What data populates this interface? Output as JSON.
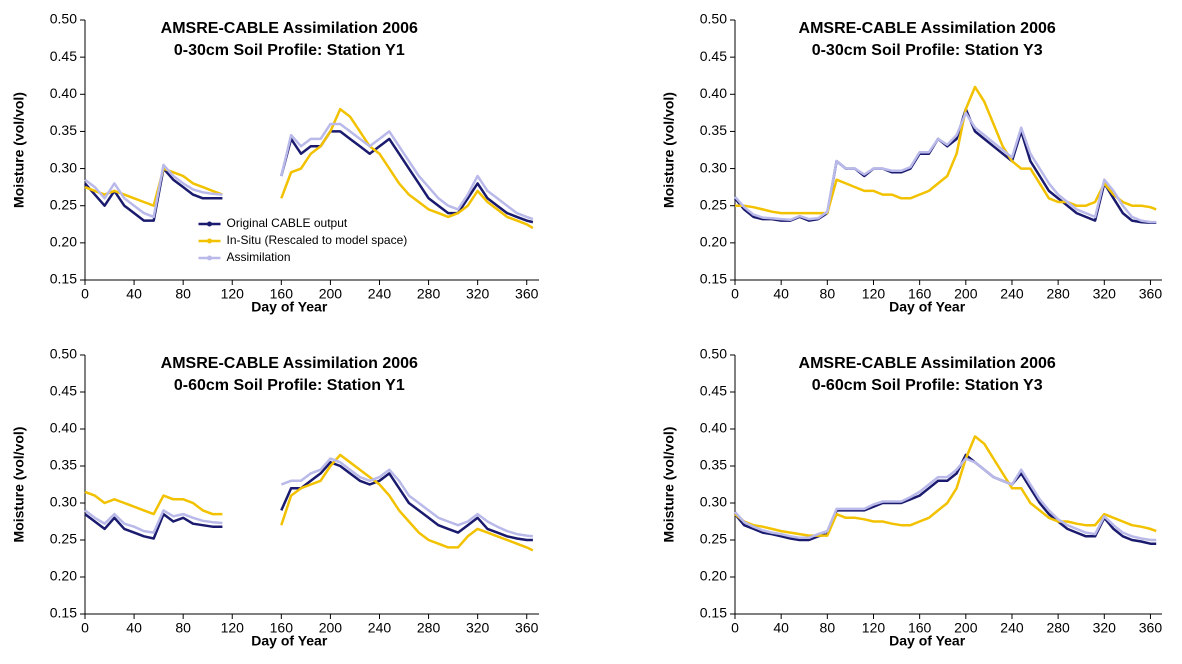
{
  "chart_data": [
    {
      "type": "line",
      "title": "AMSRE-CABLE Assimilation 2006",
      "subtitle": "0-30cm Soil Profile: Station Y1",
      "xlabel": "Day of Year",
      "ylabel": "Moisture (vol/vol)",
      "xlim": [
        0,
        370
      ],
      "ylim": [
        0.15,
        0.5
      ],
      "xticks": [
        0,
        40,
        80,
        120,
        160,
        200,
        240,
        280,
        320,
        360
      ],
      "yticks": [
        0.15,
        {
          "value": 0.2,
          "label": "0.20"
        },
        0.25,
        {
          "value": 0.3,
          "label": "0.30"
        },
        0.35,
        {
          "value": 0.4,
          "label": "0.40"
        },
        0.45,
        {
          "value": 0.5,
          "label": "0.50"
        }
      ],
      "legend": "lower center",
      "x": [
        0,
        8,
        16,
        24,
        32,
        40,
        48,
        56,
        64,
        72,
        80,
        88,
        96,
        104,
        112,
        120,
        128,
        136,
        144,
        152,
        160,
        168,
        176,
        184,
        192,
        200,
        208,
        216,
        224,
        232,
        240,
        248,
        256,
        264,
        272,
        280,
        288,
        296,
        304,
        312,
        320,
        328,
        336,
        344,
        352,
        360,
        365
      ],
      "series": [
        {
          "name": "Original CABLE output",
          "color": "#1a1a6e",
          "values": [
            0.28,
            0.265,
            0.25,
            0.27,
            0.25,
            0.24,
            0.23,
            0.23,
            0.3,
            0.285,
            0.275,
            0.265,
            0.26,
            0.26,
            0.26,
            null,
            null,
            null,
            null,
            null,
            0.29,
            0.34,
            0.32,
            0.33,
            0.33,
            0.35,
            0.35,
            0.34,
            0.33,
            0.32,
            0.33,
            0.34,
            0.32,
            0.3,
            0.28,
            0.26,
            0.25,
            0.24,
            0.24,
            0.26,
            0.28,
            0.26,
            0.25,
            0.24,
            0.235,
            0.23,
            0.228
          ]
        },
        {
          "name": "In-Situ (Rescaled to model space)",
          "color": "#f2c200",
          "values": [
            0.275,
            0.27,
            0.265,
            0.27,
            0.265,
            0.26,
            0.255,
            0.25,
            0.3,
            0.295,
            0.29,
            0.28,
            0.275,
            0.27,
            0.265,
            null,
            null,
            null,
            null,
            null,
            0.26,
            0.295,
            0.3,
            0.32,
            0.33,
            0.35,
            0.38,
            0.37,
            0.35,
            0.33,
            0.32,
            0.3,
            0.28,
            0.265,
            0.255,
            0.245,
            0.24,
            0.235,
            0.24,
            0.25,
            0.27,
            0.255,
            0.245,
            0.235,
            0.23,
            0.225,
            0.22
          ]
        },
        {
          "name": "Assimilation",
          "color": "#b9b9ea",
          "values": [
            0.285,
            0.275,
            0.26,
            0.28,
            0.26,
            0.25,
            0.24,
            0.235,
            0.305,
            0.29,
            0.28,
            0.272,
            0.268,
            0.266,
            0.265,
            null,
            null,
            null,
            null,
            null,
            0.29,
            0.345,
            0.33,
            0.34,
            0.34,
            0.36,
            0.36,
            0.35,
            0.34,
            0.33,
            0.34,
            0.35,
            0.33,
            0.31,
            0.29,
            0.275,
            0.26,
            0.25,
            0.245,
            0.265,
            0.29,
            0.27,
            0.26,
            0.25,
            0.24,
            0.235,
            0.232
          ]
        }
      ]
    },
    {
      "type": "line",
      "title": "AMSRE-CABLE Assimilation 2006",
      "subtitle": "0-30cm Soil Profile: Station Y3",
      "xlabel": "Day of Year",
      "ylabel": "Moisture (vol/vol)",
      "xlim": [
        0,
        370
      ],
      "ylim": [
        0.15,
        0.5
      ],
      "xticks": [
        0,
        40,
        80,
        120,
        160,
        200,
        240,
        280,
        320,
        360
      ],
      "yticks": [
        0.15,
        {
          "value": 0.2,
          "label": "0.20"
        },
        0.25,
        {
          "value": 0.3,
          "label": "0.30"
        },
        0.35,
        {
          "value": 0.4,
          "label": "0.40"
        },
        0.45,
        {
          "value": 0.5,
          "label": "0.50"
        }
      ],
      "x": [
        0,
        8,
        16,
        24,
        32,
        40,
        48,
        56,
        64,
        72,
        80,
        88,
        96,
        104,
        112,
        120,
        128,
        136,
        144,
        152,
        160,
        168,
        176,
        184,
        192,
        200,
        208,
        216,
        224,
        232,
        240,
        248,
        256,
        264,
        272,
        280,
        288,
        296,
        304,
        312,
        320,
        328,
        336,
        344,
        352,
        360,
        365
      ],
      "series": [
        {
          "name": "Original CABLE output",
          "color": "#1a1a6e",
          "values": [
            0.26,
            0.245,
            0.235,
            0.232,
            0.232,
            0.23,
            0.23,
            0.235,
            0.23,
            0.232,
            0.24,
            0.31,
            0.3,
            0.3,
            0.29,
            0.3,
            0.3,
            0.295,
            0.295,
            0.3,
            0.32,
            0.32,
            0.34,
            0.33,
            0.34,
            0.38,
            0.35,
            0.34,
            0.33,
            0.32,
            0.31,
            0.35,
            0.31,
            0.29,
            0.27,
            0.26,
            0.25,
            0.24,
            0.235,
            0.23,
            0.28,
            0.26,
            0.24,
            0.23,
            0.228,
            0.227,
            0.227
          ]
        },
        {
          "name": "In-Situ (Rescaled to model space)",
          "color": "#f2c200",
          "values": [
            0.25,
            0.25,
            0.248,
            0.245,
            0.242,
            0.24,
            0.24,
            0.24,
            0.24,
            0.24,
            0.24,
            0.285,
            0.28,
            0.275,
            0.27,
            0.27,
            0.265,
            0.265,
            0.26,
            0.26,
            0.265,
            0.27,
            0.28,
            0.29,
            0.32,
            0.38,
            0.41,
            0.39,
            0.36,
            0.33,
            0.31,
            0.3,
            0.3,
            0.28,
            0.26,
            0.255,
            0.255,
            0.25,
            0.25,
            0.255,
            0.28,
            0.265,
            0.255,
            0.25,
            0.25,
            0.248,
            0.245
          ]
        },
        {
          "name": "Assimilation",
          "color": "#b9b9ea",
          "values": [
            0.262,
            0.248,
            0.238,
            0.234,
            0.233,
            0.232,
            0.231,
            0.236,
            0.232,
            0.233,
            0.242,
            0.31,
            0.3,
            0.3,
            0.292,
            0.3,
            0.3,
            0.297,
            0.297,
            0.302,
            0.322,
            0.322,
            0.34,
            0.332,
            0.345,
            0.375,
            0.355,
            0.345,
            0.335,
            0.325,
            0.315,
            0.355,
            0.32,
            0.3,
            0.28,
            0.265,
            0.255,
            0.245,
            0.24,
            0.235,
            0.285,
            0.27,
            0.25,
            0.235,
            0.23,
            0.228,
            0.228
          ]
        }
      ]
    },
    {
      "type": "line",
      "title": "AMSRE-CABLE Assimilation 2006",
      "subtitle": "0-60cm Soil Profile: Station Y1",
      "xlabel": "Day of Year",
      "ylabel": "Moisture (vol/vol)",
      "xlim": [
        0,
        370
      ],
      "ylim": [
        0.15,
        0.5
      ],
      "xticks": [
        0,
        40,
        80,
        120,
        160,
        200,
        240,
        280,
        320,
        360
      ],
      "yticks": [
        0.15,
        {
          "value": 0.2,
          "label": "0.20"
        },
        0.25,
        {
          "value": 0.3,
          "label": "0.30"
        },
        0.35,
        {
          "value": 0.4,
          "label": "0.40"
        },
        0.45,
        {
          "value": 0.5,
          "label": "0.50"
        }
      ],
      "x": [
        0,
        8,
        16,
        24,
        32,
        40,
        48,
        56,
        64,
        72,
        80,
        88,
        96,
        104,
        112,
        120,
        128,
        136,
        144,
        152,
        160,
        168,
        176,
        184,
        192,
        200,
        208,
        216,
        224,
        232,
        240,
        248,
        256,
        264,
        272,
        280,
        288,
        296,
        304,
        312,
        320,
        328,
        336,
        344,
        352,
        360,
        365
      ],
      "series": [
        {
          "name": "Original CABLE output",
          "color": "#1a1a6e",
          "values": [
            0.285,
            0.275,
            0.265,
            0.28,
            0.265,
            0.26,
            0.255,
            0.252,
            0.285,
            0.275,
            0.28,
            0.272,
            0.27,
            0.268,
            0.268,
            null,
            null,
            null,
            null,
            null,
            0.29,
            0.32,
            0.32,
            0.33,
            0.34,
            0.355,
            0.35,
            0.34,
            0.33,
            0.325,
            0.33,
            0.34,
            0.32,
            0.3,
            0.29,
            0.28,
            0.27,
            0.265,
            0.26,
            0.27,
            0.28,
            0.265,
            0.26,
            0.255,
            0.252,
            0.25,
            0.25
          ]
        },
        {
          "name": "In-Situ (Rescaled to model space)",
          "color": "#f2c200",
          "values": [
            0.315,
            0.31,
            0.3,
            0.305,
            0.3,
            0.295,
            0.29,
            0.285,
            0.31,
            0.305,
            0.305,
            0.3,
            0.29,
            0.285,
            0.285,
            null,
            null,
            null,
            null,
            null,
            0.27,
            0.31,
            0.32,
            0.325,
            0.33,
            0.35,
            0.365,
            0.355,
            0.345,
            0.335,
            0.325,
            0.31,
            0.29,
            0.275,
            0.26,
            0.25,
            0.245,
            0.24,
            0.24,
            0.255,
            0.265,
            0.26,
            0.255,
            0.25,
            0.245,
            0.24,
            0.236
          ]
        },
        {
          "name": "Assimilation",
          "color": "#b9b9ea",
          "values": [
            0.29,
            0.28,
            0.272,
            0.285,
            0.272,
            0.268,
            0.262,
            0.26,
            0.29,
            0.282,
            0.285,
            0.28,
            0.276,
            0.274,
            0.273,
            null,
            null,
            null,
            null,
            null,
            0.325,
            0.33,
            0.33,
            0.34,
            0.345,
            0.36,
            0.355,
            0.345,
            0.335,
            0.33,
            0.335,
            0.345,
            0.33,
            0.31,
            0.3,
            0.29,
            0.28,
            0.275,
            0.27,
            0.275,
            0.285,
            0.275,
            0.268,
            0.262,
            0.258,
            0.256,
            0.255
          ]
        }
      ]
    },
    {
      "type": "line",
      "title": "AMSRE-CABLE Assimilation 2006",
      "subtitle": "0-60cm Soil Profile: Station Y3",
      "xlabel": "Day of Year",
      "ylabel": "Moisture (vol/vol)",
      "xlim": [
        0,
        370
      ],
      "ylim": [
        0.15,
        0.5
      ],
      "xticks": [
        0,
        40,
        80,
        120,
        160,
        200,
        240,
        280,
        320,
        360
      ],
      "yticks": [
        0.15,
        {
          "value": 0.2,
          "label": "0.20"
        },
        0.25,
        {
          "value": 0.3,
          "label": "0.30"
        },
        0.35,
        {
          "value": 0.4,
          "label": "0.40"
        },
        0.45,
        {
          "value": 0.5,
          "label": "0.50"
        }
      ],
      "x": [
        0,
        8,
        16,
        24,
        32,
        40,
        48,
        56,
        64,
        72,
        80,
        88,
        96,
        104,
        112,
        120,
        128,
        136,
        144,
        152,
        160,
        168,
        176,
        184,
        192,
        200,
        208,
        216,
        224,
        232,
        240,
        248,
        256,
        264,
        272,
        280,
        288,
        296,
        304,
        312,
        320,
        328,
        336,
        344,
        352,
        360,
        365
      ],
      "series": [
        {
          "name": "Original CABLE output",
          "color": "#1a1a6e",
          "values": [
            0.285,
            0.27,
            0.265,
            0.26,
            0.258,
            0.255,
            0.252,
            0.25,
            0.25,
            0.255,
            0.258,
            0.29,
            0.29,
            0.29,
            0.29,
            0.295,
            0.3,
            0.3,
            0.3,
            0.305,
            0.31,
            0.32,
            0.33,
            0.33,
            0.34,
            0.365,
            0.355,
            0.345,
            0.335,
            0.33,
            0.325,
            0.34,
            0.32,
            0.3,
            0.285,
            0.275,
            0.265,
            0.26,
            0.255,
            0.255,
            0.28,
            0.265,
            0.255,
            0.25,
            0.248,
            0.245,
            0.245
          ]
        },
        {
          "name": "In-Situ (Rescaled to model space)",
          "color": "#f2c200",
          "values": [
            0.285,
            0.275,
            0.27,
            0.268,
            0.265,
            0.262,
            0.26,
            0.258,
            0.256,
            0.256,
            0.256,
            0.285,
            0.28,
            0.28,
            0.278,
            0.275,
            0.275,
            0.272,
            0.27,
            0.27,
            0.275,
            0.28,
            0.29,
            0.3,
            0.32,
            0.36,
            0.39,
            0.38,
            0.36,
            0.34,
            0.32,
            0.32,
            0.3,
            0.29,
            0.28,
            0.275,
            0.275,
            0.272,
            0.27,
            0.27,
            0.285,
            0.28,
            0.275,
            0.27,
            0.268,
            0.265,
            0.262
          ]
        },
        {
          "name": "Assimilation",
          "color": "#b9b9ea",
          "values": [
            0.288,
            0.274,
            0.268,
            0.263,
            0.26,
            0.258,
            0.255,
            0.253,
            0.253,
            0.258,
            0.262,
            0.292,
            0.292,
            0.292,
            0.292,
            0.298,
            0.302,
            0.302,
            0.302,
            0.308,
            0.315,
            0.325,
            0.335,
            0.335,
            0.345,
            0.36,
            0.355,
            0.345,
            0.335,
            0.33,
            0.325,
            0.345,
            0.325,
            0.305,
            0.29,
            0.278,
            0.27,
            0.265,
            0.26,
            0.258,
            0.282,
            0.27,
            0.26,
            0.255,
            0.252,
            0.25,
            0.25
          ]
        }
      ]
    }
  ]
}
